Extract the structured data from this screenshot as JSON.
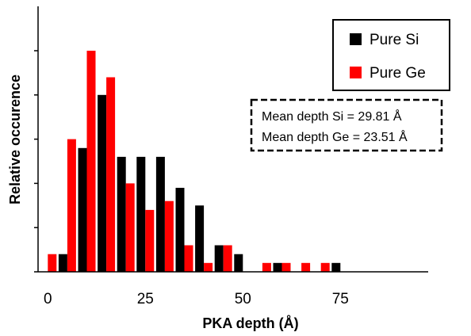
{
  "chart_data": {
    "type": "bar",
    "xlabel": "PKA depth (Å)",
    "ylabel": "Relative occurence",
    "xlim": [
      -2.5,
      97.5
    ],
    "ylim": [
      0,
      5
    ],
    "x_ticks": [
      0,
      25,
      50,
      75
    ],
    "x_tick_labels": [
      "0",
      "25",
      "50",
      "75"
    ],
    "y_tick_count": 6,
    "y_tick_labels_shown": false,
    "bin_width": 5,
    "grid": false,
    "legend_position": "top-right",
    "series": [
      {
        "name": "Pure Si",
        "color": "#000000",
        "x": [
          5,
          10,
          15,
          20,
          25,
          30,
          35,
          40,
          45,
          50,
          55,
          60,
          65,
          70,
          75
        ],
        "values": [
          0.4,
          2.8,
          4.0,
          2.6,
          2.6,
          2.6,
          1.9,
          1.5,
          0.6,
          0.4,
          0,
          0.2,
          0,
          0,
          0.2
        ]
      },
      {
        "name": "Pure Ge",
        "color": "#ff0000",
        "x": [
          0,
          5,
          10,
          15,
          20,
          25,
          30,
          35,
          40,
          45,
          50,
          55,
          60,
          65,
          70
        ],
        "values": [
          0.4,
          3.0,
          5.0,
          4.4,
          2.0,
          1.4,
          1.6,
          0.6,
          0.2,
          0.6,
          0,
          0.2,
          0.2,
          0.2,
          0.2
        ]
      }
    ],
    "annotations": [
      "Mean depth Si = 29.81 Å",
      "Mean depth Ge = 23.51 Å"
    ]
  }
}
